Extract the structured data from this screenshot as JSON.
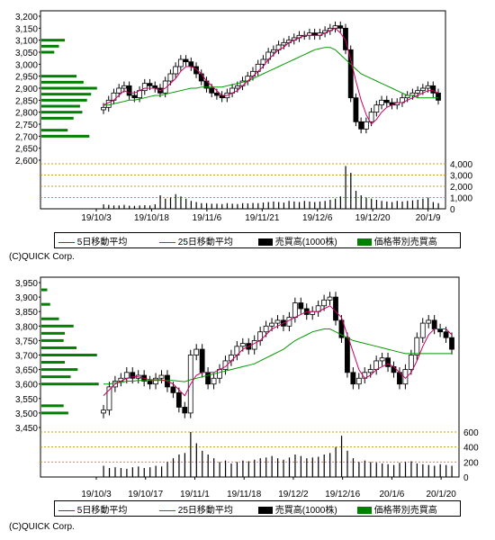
{
  "legend": {
    "ma5": "5日移動平均",
    "ma25": "25日移動平均",
    "volume": "売買高(1000株)",
    "price_volume": "価格帯別売買高"
  },
  "copyright": "(C)QUICK Corp.",
  "colors": {
    "ma5": "#cc0066",
    "ma25": "#009900",
    "candle": "#000000",
    "volume_bar": "#000000",
    "price_volume_bar": "#008000",
    "grid_dotted": "#c8a000"
  },
  "chart_data": [
    {
      "type": "candlestick",
      "price_ticks": [
        "3,200",
        "3,150",
        "3,100",
        "3,050",
        "3,000",
        "2,950",
        "2,900",
        "2,850",
        "2,800",
        "2,750",
        "2,700",
        "2,650",
        "2,600"
      ],
      "price_ylim": [
        2600,
        3200
      ],
      "volume_ticks": [
        "4,000",
        "3,000",
        "2,000",
        "1,000",
        "0"
      ],
      "volume_ylim": [
        0,
        4000
      ],
      "x_ticks": [
        "19/10/3",
        "19/10/18",
        "19/11/6",
        "19/11/21",
        "19/12/6",
        "19/12/20",
        "20/1/9"
      ],
      "close": [
        2820,
        2850,
        2880,
        2900,
        2910,
        2870,
        2860,
        2890,
        2920,
        2910,
        2900,
        2880,
        2930,
        2960,
        2990,
        3020,
        3010,
        2990,
        2960,
        2930,
        2900,
        2880,
        2870,
        2860,
        2880,
        2900,
        2910,
        2930,
        2950,
        2970,
        3000,
        3020,
        3050,
        3060,
        3080,
        3090,
        3100,
        3110,
        3120,
        3120,
        3130,
        3120,
        3130,
        3140,
        3150,
        3160,
        3150,
        3060,
        2860,
        2760,
        2730,
        2760,
        2800,
        2830,
        2850,
        2840,
        2830,
        2840,
        2860,
        2870,
        2880,
        2890,
        2900,
        2910,
        2880,
        2850
      ],
      "ma5": [
        2830,
        2840,
        2850,
        2870,
        2890,
        2880,
        2880,
        2890,
        2900,
        2900,
        2900,
        2890,
        2900,
        2920,
        2940,
        2970,
        2990,
        2990,
        2980,
        2960,
        2930,
        2910,
        2890,
        2870,
        2870,
        2880,
        2890,
        2910,
        2930,
        2950,
        2970,
        2990,
        3020,
        3040,
        3060,
        3070,
        3090,
        3100,
        3110,
        3120,
        3120,
        3120,
        3120,
        3130,
        3140,
        3150,
        3130,
        3100,
        3020,
        2930,
        2850,
        2790,
        2750,
        2770,
        2800,
        2820,
        2830,
        2840,
        2840,
        2850,
        2860,
        2870,
        2880,
        2890,
        2890,
        2880
      ],
      "ma25": [
        2830,
        2830,
        2835,
        2840,
        2845,
        2850,
        2850,
        2855,
        2860,
        2865,
        2870,
        2870,
        2875,
        2880,
        2885,
        2890,
        2895,
        2900,
        2900,
        2905,
        2905,
        2905,
        2905,
        2905,
        2910,
        2915,
        2920,
        2925,
        2930,
        2940,
        2950,
        2960,
        2970,
        2980,
        2990,
        3000,
        3010,
        3020,
        3030,
        3040,
        3050,
        3060,
        3065,
        3070,
        3070,
        3060,
        3040,
        3020,
        3000,
        2980,
        2960,
        2950,
        2940,
        2930,
        2920,
        2910,
        2900,
        2890,
        2880,
        2870,
        2870,
        2860,
        2860,
        2860,
        2860,
        2860
      ],
      "volume": [
        400,
        350,
        300,
        300,
        350,
        280,
        260,
        300,
        320,
        300,
        400,
        1200,
        900,
        1000,
        1300,
        1100,
        900,
        700,
        600,
        500,
        500,
        450,
        450,
        420,
        500,
        450,
        420,
        500,
        480,
        520,
        500,
        550,
        600,
        650,
        600,
        550,
        700,
        650,
        600,
        700,
        650,
        600,
        650,
        700,
        800,
        900,
        1100,
        3800,
        3200,
        1600,
        1200,
        1000,
        900,
        800,
        700,
        650,
        600,
        700,
        650,
        700,
        750,
        800,
        900,
        1000,
        600,
        500
      ],
      "price_volume": [
        {
          "price": 3100,
          "value": 0.4
        },
        {
          "price": 3075,
          "value": 0.3
        },
        {
          "price": 3050,
          "value": 0.22
        },
        {
          "price": 2950,
          "value": 0.6
        },
        {
          "price": 2925,
          "value": 0.72
        },
        {
          "price": 2900,
          "value": 0.95
        },
        {
          "price": 2875,
          "value": 0.85
        },
        {
          "price": 2850,
          "value": 0.78
        },
        {
          "price": 2825,
          "value": 0.66
        },
        {
          "price": 2800,
          "value": 0.7
        },
        {
          "price": 2775,
          "value": 0.55
        },
        {
          "price": 2725,
          "value": 0.45
        },
        {
          "price": 2700,
          "value": 0.82
        }
      ]
    },
    {
      "type": "candlestick",
      "price_ticks": [
        "3,950",
        "3,900",
        "3,850",
        "3,800",
        "3,750",
        "3,700",
        "3,650",
        "3,600",
        "3,550",
        "3,500",
        "3,450"
      ],
      "price_ylim": [
        3450,
        3950
      ],
      "volume_ticks": [
        "600",
        "400",
        "200",
        "0"
      ],
      "volume_ylim": [
        0,
        600
      ],
      "x_ticks": [
        "19/10/3",
        "19/10/17",
        "19/11/1",
        "19/11/18",
        "19/12/2",
        "19/12/16",
        "20/1/6",
        "20/1/20"
      ],
      "close": [
        3510,
        3590,
        3610,
        3620,
        3640,
        3620,
        3630,
        3610,
        3600,
        3620,
        3630,
        3590,
        3570,
        3520,
        3500,
        3700,
        3720,
        3640,
        3600,
        3620,
        3650,
        3680,
        3700,
        3730,
        3740,
        3720,
        3750,
        3780,
        3800,
        3810,
        3820,
        3800,
        3830,
        3880,
        3860,
        3840,
        3850,
        3870,
        3890,
        3900,
        3820,
        3760,
        3640,
        3600,
        3620,
        3640,
        3650,
        3680,
        3690,
        3660,
        3640,
        3600,
        3650,
        3700,
        3760,
        3810,
        3820,
        3790,
        3780,
        3760,
        3720
      ],
      "ma5": [
        3560,
        3580,
        3600,
        3610,
        3620,
        3625,
        3625,
        3620,
        3615,
        3615,
        3615,
        3610,
        3600,
        3580,
        3560,
        3600,
        3630,
        3640,
        3640,
        3640,
        3650,
        3660,
        3680,
        3700,
        3720,
        3730,
        3740,
        3750,
        3770,
        3790,
        3800,
        3810,
        3820,
        3830,
        3840,
        3850,
        3850,
        3850,
        3860,
        3870,
        3850,
        3830,
        3770,
        3710,
        3650,
        3620,
        3630,
        3650,
        3660,
        3670,
        3660,
        3640,
        3620,
        3640,
        3680,
        3730,
        3770,
        3790,
        3790,
        3790,
        3770
      ],
      "ma25": [
        3600,
        3600,
        3605,
        3605,
        3610,
        3610,
        3612,
        3612,
        3612,
        3612,
        3612,
        3612,
        3612,
        3610,
        3608,
        3615,
        3620,
        3625,
        3630,
        3635,
        3640,
        3645,
        3650,
        3655,
        3660,
        3665,
        3670,
        3680,
        3690,
        3700,
        3710,
        3720,
        3735,
        3750,
        3760,
        3770,
        3780,
        3785,
        3790,
        3790,
        3780,
        3770,
        3760,
        3750,
        3745,
        3740,
        3735,
        3730,
        3725,
        3720,
        3715,
        3710,
        3705,
        3705,
        3705,
        3705,
        3705,
        3705,
        3705,
        3705,
        3705
      ],
      "volume": [
        150,
        120,
        130,
        120,
        110,
        130,
        140,
        120,
        130,
        150,
        140,
        200,
        250,
        300,
        320,
        600,
        450,
        350,
        300,
        250,
        200,
        220,
        180,
        200,
        220,
        210,
        230,
        250,
        260,
        280,
        250,
        230,
        260,
        300,
        280,
        250,
        260,
        270,
        300,
        320,
        400,
        550,
        350,
        250,
        200,
        220,
        200,
        190,
        180,
        170,
        160,
        190,
        200,
        210,
        180,
        170,
        160,
        150,
        170,
        160,
        150
      ],
      "price_volume": [
        {
          "price": 3925,
          "value": 0.1
        },
        {
          "price": 3875,
          "value": 0.15
        },
        {
          "price": 3825,
          "value": 0.3
        },
        {
          "price": 3800,
          "value": 0.55
        },
        {
          "price": 3775,
          "value": 0.4
        },
        {
          "price": 3750,
          "value": 0.38
        },
        {
          "price": 3725,
          "value": 0.6
        },
        {
          "price": 3700,
          "value": 0.95
        },
        {
          "price": 3675,
          "value": 0.4
        },
        {
          "price": 3650,
          "value": 0.62
        },
        {
          "price": 3625,
          "value": 0.5
        },
        {
          "price": 3600,
          "value": 0.98
        },
        {
          "price": 3525,
          "value": 0.38
        },
        {
          "price": 3500,
          "value": 0.46
        }
      ]
    }
  ]
}
